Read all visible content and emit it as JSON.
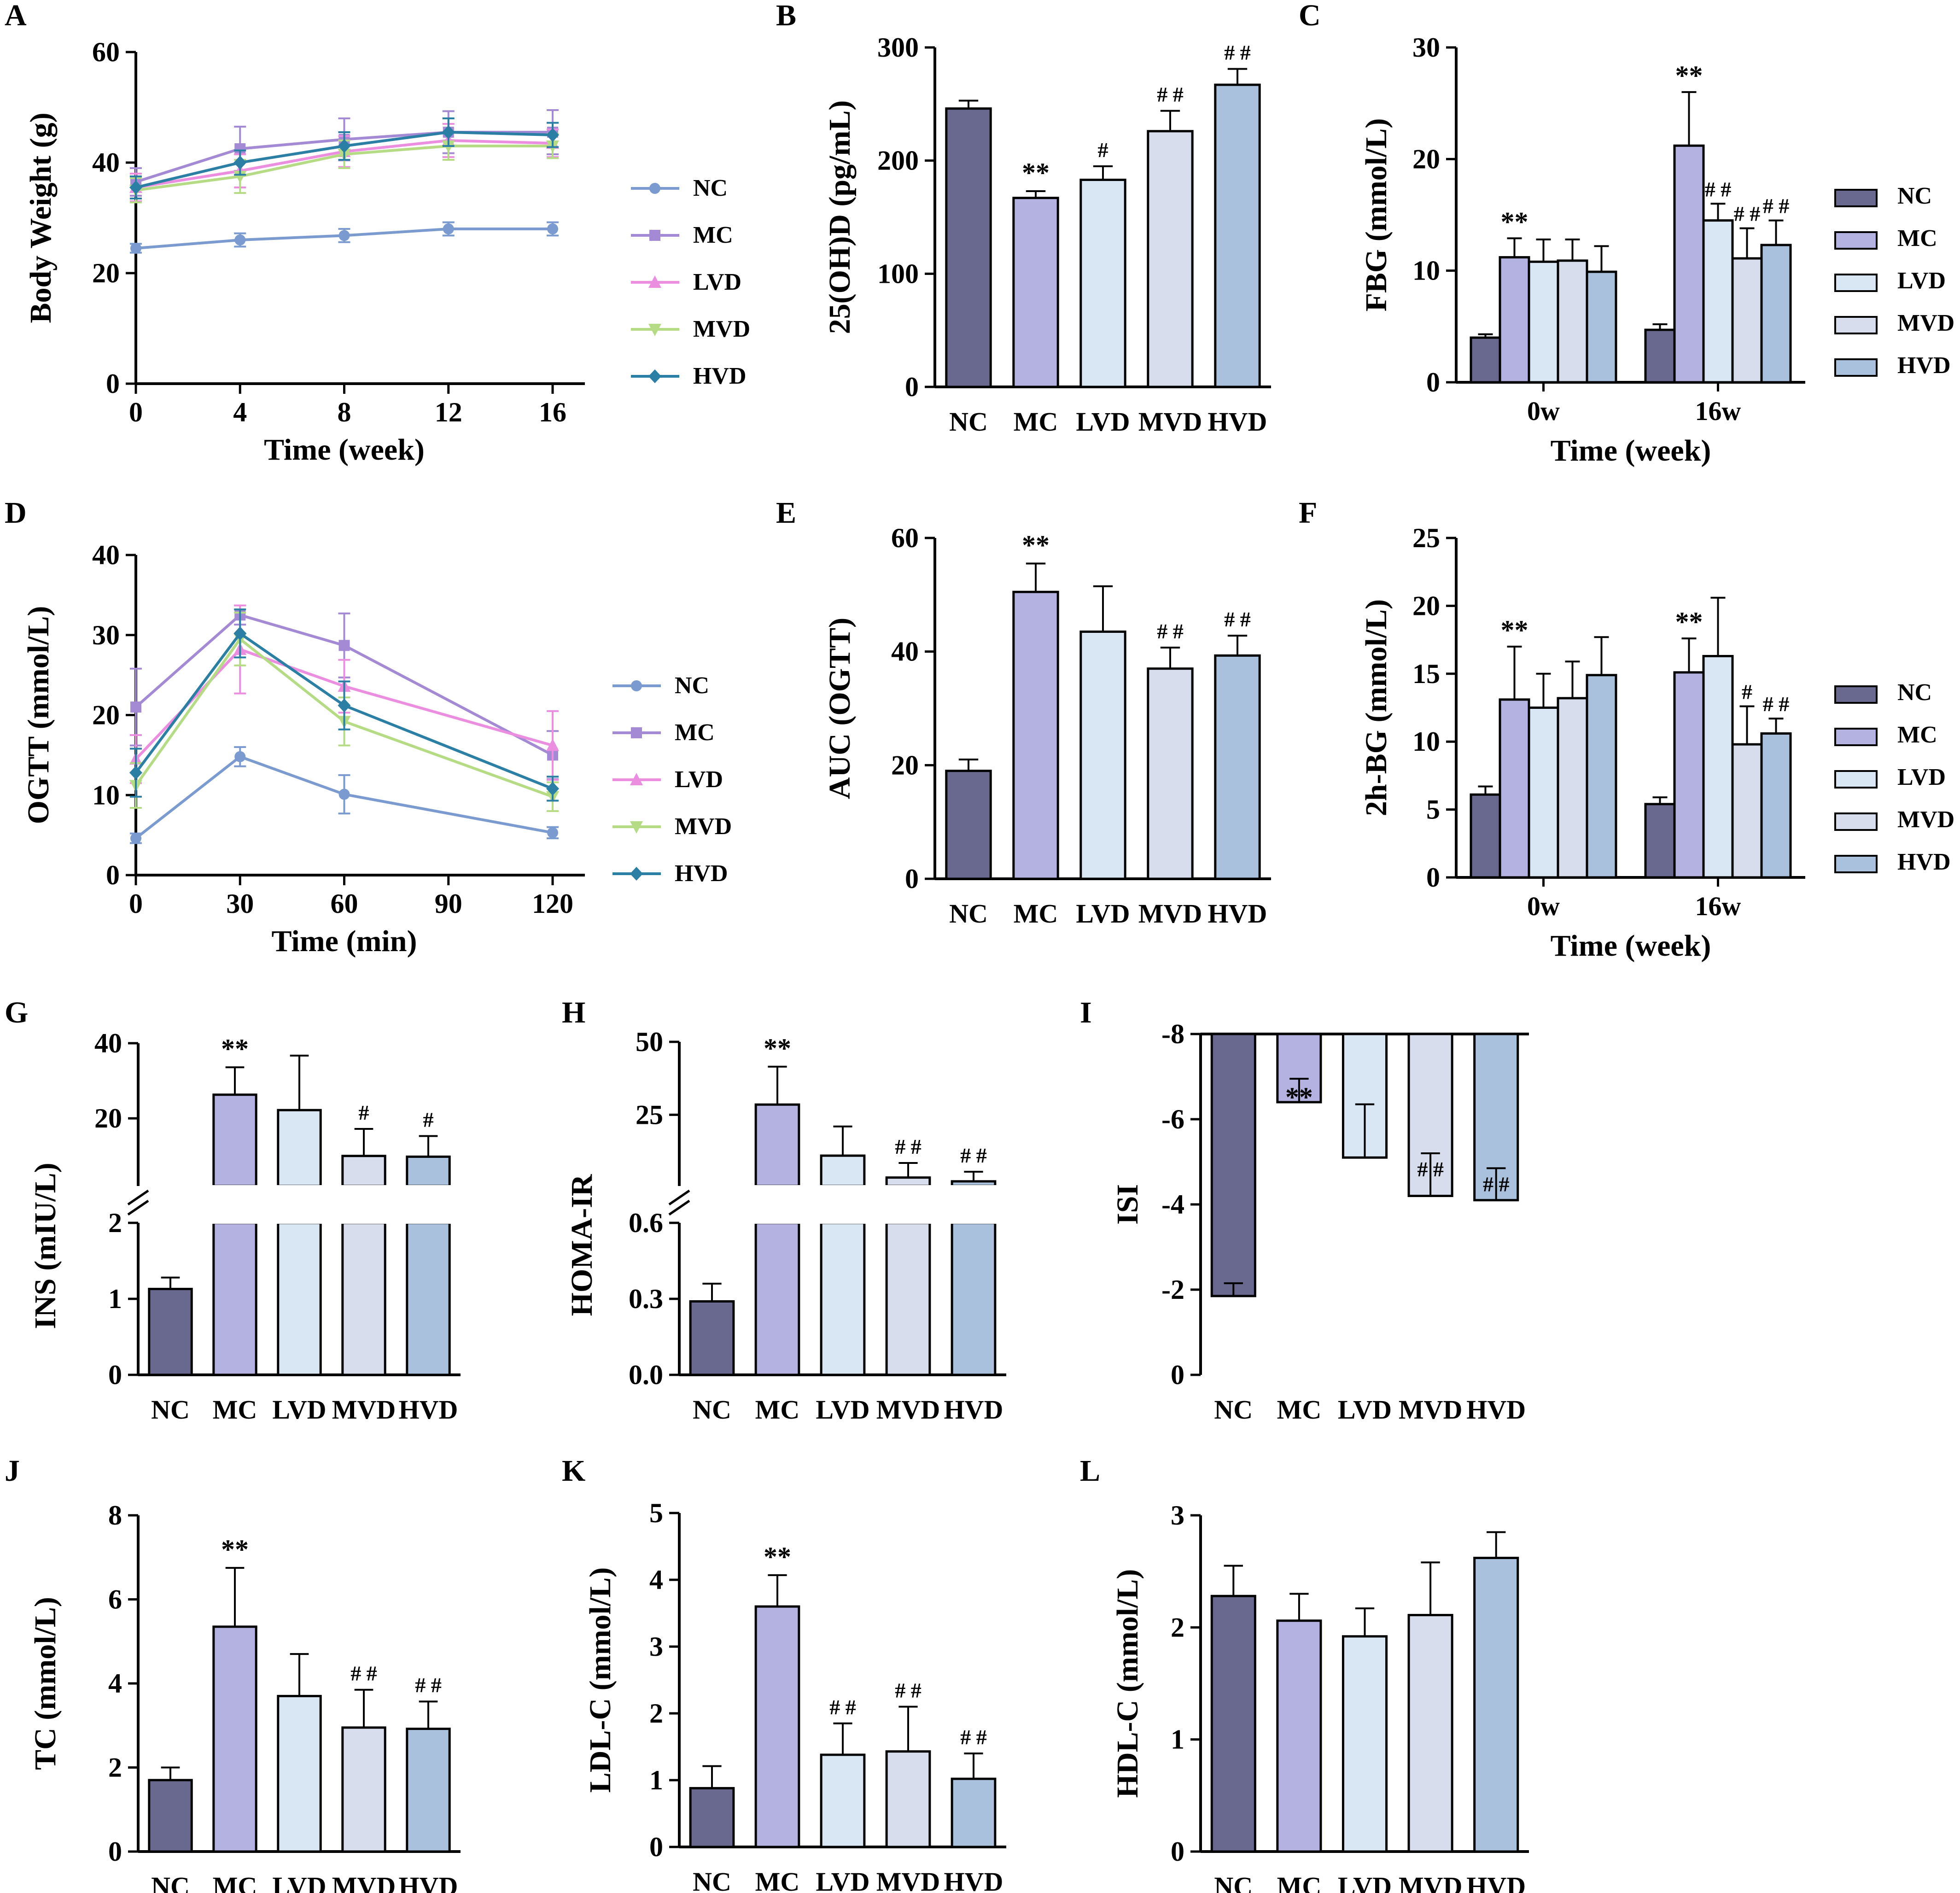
{
  "figure": {
    "groups": [
      "NC",
      "MC",
      "LVD",
      "MVD",
      "HVD"
    ],
    "colors": {
      "bar": [
        "#69698f",
        "#b3b2e0",
        "#d9e6f4",
        "#d8dded",
        "#a9c1dc"
      ],
      "line": [
        "#7a9ad0",
        "#a48ad4",
        "#ec8ee0",
        "#b5db85",
        "#2b7fa5"
      ]
    }
  },
  "chart_data": [
    {
      "id": "A",
      "letter": "A",
      "type": "line",
      "xlabel": "Time  (week)",
      "ylabel": "Body Weight (g)",
      "x": [
        0,
        4,
        8,
        12,
        16
      ],
      "xticks": [
        "0",
        "4",
        "8",
        "12",
        "16"
      ],
      "ylim": [
        0,
        60
      ],
      "yticks": [
        "0",
        "20",
        "40",
        "60"
      ],
      "legend": [
        "NC",
        "MC",
        "LVD",
        "MVD",
        "HVD"
      ],
      "series": [
        {
          "name": "NC",
          "marker": "circle",
          "values": [
            24.5,
            26,
            26.8,
            28,
            28
          ],
          "errors": [
            0.8,
            1.2,
            1.2,
            1.2,
            1.2
          ]
        },
        {
          "name": "MC",
          "marker": "square",
          "values": [
            36.5,
            42.5,
            44.2,
            45.5,
            45.5
          ],
          "errors": [
            2.5,
            4,
            3.8,
            3.8,
            4
          ]
        },
        {
          "name": "LVD",
          "marker": "tri-up",
          "values": [
            35.5,
            38.5,
            42,
            44,
            43.5
          ],
          "errors": [
            2.5,
            3,
            2.8,
            3,
            2.5
          ]
        },
        {
          "name": "MVD",
          "marker": "tri-down",
          "values": [
            35,
            37.5,
            41.5,
            43,
            43
          ],
          "errors": [
            2.2,
            3,
            2.5,
            2.5,
            2.2
          ]
        },
        {
          "name": "HVD",
          "marker": "diamond",
          "values": [
            35.5,
            40,
            43,
            45.5,
            45
          ],
          "errors": [
            2,
            2.2,
            2.5,
            2.5,
            2.2
          ]
        }
      ]
    },
    {
      "id": "B",
      "letter": "B",
      "type": "bar",
      "ylabel": "25(OH)D (pg/mL)",
      "categories": [
        "NC",
        "MC",
        "LVD",
        "MVD",
        "HVD"
      ],
      "values": [
        246,
        167,
        183,
        226,
        267
      ],
      "errors": [
        7,
        6,
        12,
        18,
        14
      ],
      "marks": [
        "",
        "**",
        "#",
        "##",
        "##"
      ],
      "ylim": [
        0,
        300
      ],
      "yticks": [
        "0",
        "100",
        "200",
        "300"
      ]
    },
    {
      "id": "C",
      "letter": "C",
      "type": "bar",
      "xlabel": "Time  (week)",
      "ylabel": "FBG (mmol/L)",
      "categories": [
        "0w",
        "16w"
      ],
      "legend": [
        "NC",
        "MC",
        "LVD",
        "MVD",
        "HVD"
      ],
      "series": [
        {
          "name": "NC",
          "values": [
            4,
            4.7
          ],
          "errors": [
            0.3,
            0.5
          ],
          "marks": [
            "",
            ""
          ]
        },
        {
          "name": "MC",
          "values": [
            11.2,
            21.2
          ],
          "errors": [
            1.7,
            4.8
          ],
          "marks": [
            "**",
            "**"
          ]
        },
        {
          "name": "LVD",
          "values": [
            10.8,
            14.5
          ],
          "errors": [
            2,
            1.5
          ],
          "marks": [
            "",
            "##"
          ]
        },
        {
          "name": "MVD",
          "values": [
            10.9,
            11.1
          ],
          "errors": [
            1.9,
            2.7
          ],
          "marks": [
            "",
            "##"
          ]
        },
        {
          "name": "HVD",
          "values": [
            9.9,
            12.3
          ],
          "errors": [
            2.3,
            2.2
          ],
          "marks": [
            "",
            "##"
          ]
        }
      ],
      "ylim": [
        0,
        30
      ],
      "yticks": [
        "0",
        "10",
        "20",
        "30"
      ]
    },
    {
      "id": "D",
      "letter": "D",
      "type": "line",
      "xlabel": "Time  (min)",
      "ylabel": "OGTT (mmol/L)",
      "x": [
        0,
        30,
        60,
        120
      ],
      "xticks": [
        "0",
        "30",
        "60",
        "90",
        "120"
      ],
      "xlim": [
        0,
        120
      ],
      "ylim": [
        0,
        40
      ],
      "yticks": [
        "0",
        "10",
        "20",
        "30",
        "40"
      ],
      "legend": [
        "NC",
        "MC",
        "LVD",
        "MVD",
        "HVD"
      ],
      "series": [
        {
          "name": "NC",
          "marker": "circle",
          "values": [
            4.6,
            14.8,
            10.1,
            5.3
          ],
          "errors": [
            0.6,
            1.2,
            2.4,
            0.7
          ]
        },
        {
          "name": "MC",
          "marker": "square",
          "values": [
            21,
            32.5,
            28.7,
            15
          ],
          "errors": [
            4.8,
            1.2,
            4,
            3
          ]
        },
        {
          "name": "LVD",
          "marker": "tri-up",
          "values": [
            14.5,
            28.2,
            23.6,
            16.2
          ],
          "errors": [
            3,
            5.5,
            3.3,
            4.3
          ]
        },
        {
          "name": "MVD",
          "marker": "tri-down",
          "values": [
            11.2,
            29.5,
            19.2,
            9.8
          ],
          "errors": [
            2.8,
            3.3,
            3,
            1.8
          ]
        },
        {
          "name": "HVD",
          "marker": "diamond",
          "values": [
            12.8,
            30.2,
            21.2,
            10.8
          ],
          "errors": [
            3,
            3,
            3,
            1.5
          ]
        }
      ]
    },
    {
      "id": "E",
      "letter": "E",
      "type": "bar",
      "ylabel": "AUC (OGTT)",
      "categories": [
        "NC",
        "MC",
        "LVD",
        "MVD",
        "HVD"
      ],
      "values": [
        19,
        50.5,
        43.5,
        37,
        39.3
      ],
      "errors": [
        2,
        5,
        8,
        3.7,
        3.5
      ],
      "marks": [
        "",
        "**",
        "",
        "##",
        "##"
      ],
      "ylim": [
        0,
        60
      ],
      "yticks": [
        "0",
        "20",
        "40",
        "60"
      ]
    },
    {
      "id": "F",
      "letter": "F",
      "type": "bar",
      "xlabel": "Time  (week)",
      "ylabel": "2h-BG (mmol/L)",
      "categories": [
        "0w",
        "16w"
      ],
      "legend": [
        "NC",
        "MC",
        "LVD",
        "MVD",
        "HVD"
      ],
      "series": [
        {
          "name": "NC",
          "values": [
            6.1,
            5.4
          ],
          "errors": [
            0.6,
            0.5
          ],
          "marks": [
            "",
            ""
          ]
        },
        {
          "name": "MC",
          "values": [
            13.1,
            15.1
          ],
          "errors": [
            3.9,
            2.5
          ],
          "marks": [
            "**",
            "**"
          ]
        },
        {
          "name": "LVD",
          "values": [
            12.5,
            16.3
          ],
          "errors": [
            2.5,
            4.3
          ],
          "marks": [
            "",
            ""
          ]
        },
        {
          "name": "MVD",
          "values": [
            13.2,
            9.8
          ],
          "errors": [
            2.7,
            2.8
          ],
          "marks": [
            "",
            "#"
          ]
        },
        {
          "name": "HVD",
          "values": [
            14.9,
            10.6
          ],
          "errors": [
            2.8,
            1.1
          ],
          "marks": [
            "",
            "##"
          ]
        }
      ],
      "ylim": [
        0,
        25
      ],
      "yticks": [
        "0",
        "5",
        "10",
        "15",
        "20",
        "25"
      ]
    },
    {
      "id": "G",
      "letter": "G",
      "type": "bar-broken",
      "ylabel": "INS (mIU/L)",
      "categories": [
        "NC",
        "MC",
        "LVD",
        "MVD",
        "HVD"
      ],
      "values": [
        1.13,
        26.3,
        22.2,
        10,
        9.8
      ],
      "errors": [
        0.15,
        7.3,
        14.5,
        7.2,
        5.5
      ],
      "marks": [
        "",
        "**",
        "",
        "#",
        "#"
      ],
      "lower": {
        "range": [
          0,
          2
        ],
        "ticks": [
          "0",
          "1",
          "2"
        ],
        "tickValues": [
          0,
          1,
          2
        ]
      },
      "upper": {
        "range": [
          2,
          40
        ],
        "ticks": [
          "20",
          "40"
        ],
        "tickValues": [
          20,
          40
        ]
      }
    },
    {
      "id": "H",
      "letter": "H",
      "type": "bar-broken",
      "ylabel": "HOMA-IR",
      "categories": [
        "NC",
        "MC",
        "LVD",
        "MVD",
        "HVD"
      ],
      "values": [
        0.29,
        28.5,
        11,
        3.5,
        2.2
      ],
      "errors": [
        0.07,
        13,
        10,
        5,
        3.3
      ],
      "marks": [
        "",
        "**",
        "",
        "##",
        "##"
      ],
      "lower": {
        "range": [
          0,
          0.6
        ],
        "ticks": [
          "0.0",
          "0.3",
          "0.6"
        ],
        "tickValues": [
          0,
          0.3,
          0.6
        ]
      },
      "upper": {
        "range": [
          0.6,
          50
        ],
        "ticks": [
          "25",
          "50"
        ],
        "tickValues": [
          25,
          50
        ]
      }
    },
    {
      "id": "I",
      "letter": "I",
      "type": "bar",
      "ylabel": "ISI",
      "categories": [
        "NC",
        "MC",
        "LVD",
        "MVD",
        "HVD"
      ],
      "values": [
        -1.85,
        -6.4,
        -5.1,
        -4.2,
        -4.1
      ],
      "errors": [
        0.3,
        0.55,
        1.25,
        1,
        0.75
      ],
      "marks": [
        "",
        "**",
        "",
        "##",
        "##"
      ],
      "ylim": [
        -8,
        0
      ],
      "yticks": [
        "0",
        "-2",
        "-4",
        "-6",
        "-8"
      ]
    },
    {
      "id": "J",
      "letter": "J",
      "type": "bar",
      "ylabel": "TC (mmol/L)",
      "categories": [
        "NC",
        "MC",
        "LVD",
        "MVD",
        "HVD"
      ],
      "values": [
        1.7,
        5.35,
        3.7,
        2.95,
        2.92
      ],
      "errors": [
        0.3,
        1.4,
        1,
        0.9,
        0.65
      ],
      "marks": [
        "",
        "**",
        "",
        "##",
        "##"
      ],
      "ylim": [
        0,
        8
      ],
      "yticks": [
        "0",
        "2",
        "4",
        "6",
        "8"
      ]
    },
    {
      "id": "K",
      "letter": "K",
      "type": "bar",
      "ylabel": "LDL-C (mmol/L)",
      "categories": [
        "NC",
        "MC",
        "LVD",
        "MVD",
        "HVD"
      ],
      "values": [
        0.88,
        3.6,
        1.38,
        1.43,
        1.02
      ],
      "errors": [
        0.33,
        0.47,
        0.47,
        0.67,
        0.38
      ],
      "marks": [
        "",
        "**",
        "##",
        "##",
        "##"
      ],
      "ylim": [
        0,
        5
      ],
      "yticks": [
        "0",
        "1",
        "2",
        "3",
        "4",
        "5"
      ]
    },
    {
      "id": "L",
      "letter": "L",
      "type": "bar",
      "ylabel": "HDL-C (mmol/L)",
      "categories": [
        "NC",
        "MC",
        "LVD",
        "MVD",
        "HVD"
      ],
      "values": [
        2.28,
        2.06,
        1.92,
        2.11,
        2.62
      ],
      "errors": [
        0.27,
        0.24,
        0.25,
        0.47,
        0.23
      ],
      "marks": [
        "",
        "",
        "",
        "",
        ""
      ],
      "ylim": [
        0,
        3
      ],
      "yticks": [
        "0",
        "1",
        "2",
        "3"
      ]
    }
  ]
}
